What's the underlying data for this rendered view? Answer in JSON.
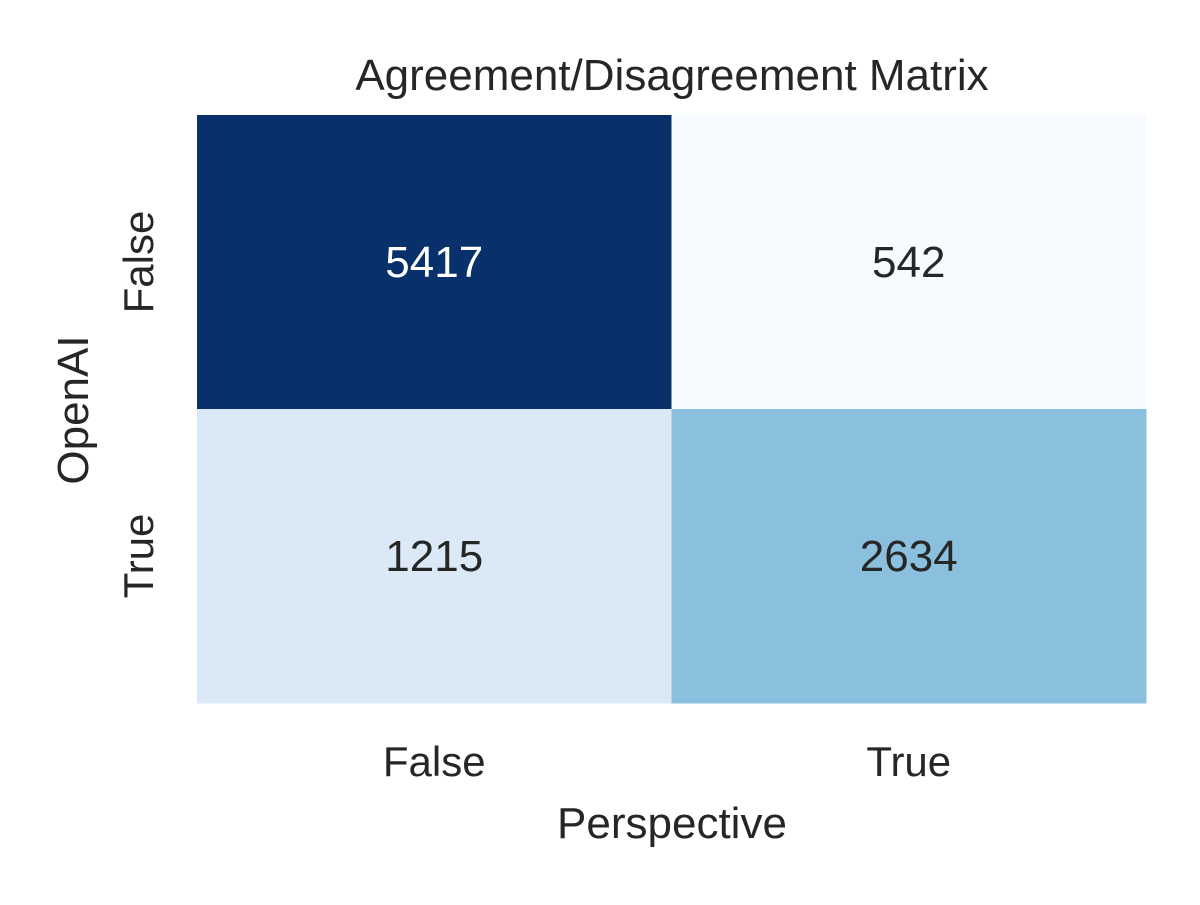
{
  "chart_data": {
    "type": "heatmap",
    "title": "Agreement/Disagreement Matrix",
    "xlabel": "Perspective",
    "ylabel": "OpenAI",
    "x_categories": [
      "False",
      "True"
    ],
    "y_categories": [
      "False",
      "True"
    ],
    "values": [
      [
        5417,
        542
      ],
      [
        1215,
        2634
      ]
    ],
    "colormap": "Blues",
    "colorbar": false,
    "grid": false,
    "cell_colors": [
      [
        "#08306b",
        "#f7fbff"
      ],
      [
        "#dbe9f6",
        "#8abfdd"
      ]
    ],
    "annotation_text_colors": [
      [
        "#ffffff",
        "#262626"
      ],
      [
        "#262626",
        "#262626"
      ]
    ]
  }
}
